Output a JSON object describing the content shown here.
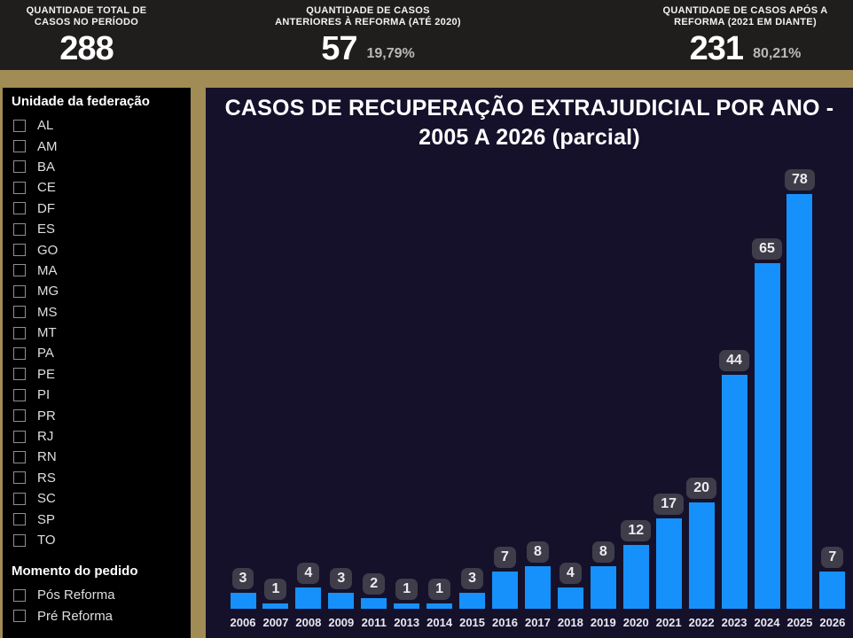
{
  "kpi_cards": [
    {
      "label_line1": "QUANTIDADE TOTAL DE",
      "label_line2": "CASOS NO PERÍODO",
      "value": "288",
      "percent": ""
    },
    {
      "label_line1": "QUANTIDADE DE CASOS",
      "label_line2": "ANTERIORES À REFORMA (ATÉ 2020)",
      "value": "57",
      "percent": "19,79%"
    },
    {
      "label_line1": "QUANTIDADE DE CASOS APÓS A",
      "label_line2": "REFORMA (2021 EM DIANTE)",
      "value": "231",
      "percent": "80,21%"
    }
  ],
  "sidebar": {
    "federation_title": "Unidade da federação",
    "states": [
      "AL",
      "AM",
      "BA",
      "CE",
      "DF",
      "ES",
      "GO",
      "MA",
      "MG",
      "MS",
      "MT",
      "PA",
      "PE",
      "PI",
      "PR",
      "RJ",
      "RN",
      "RS",
      "SC",
      "SP",
      "TO"
    ],
    "momento_title": "Momento do pedido",
    "momento_options": [
      "Pós Reforma",
      "Pré Reforma"
    ]
  },
  "chart_data": {
    "type": "bar",
    "title": "CASOS DE RECUPERAÇÃO EXTRAJUDICIAL POR ANO - 2005 A 2026 (parcial)",
    "title_lines": [
      "CASOS DE RECUPERAÇÃO EXTRAJUDICIAL POR ANO -",
      "2005 A 2026 (parcial)"
    ],
    "categories": [
      "2006",
      "2007",
      "2008",
      "2009",
      "2011",
      "2013",
      "2014",
      "2015",
      "2016",
      "2017",
      "2018",
      "2019",
      "2020",
      "2021",
      "2022",
      "2023",
      "2024",
      "2025",
      "2026"
    ],
    "values": [
      3,
      1,
      4,
      3,
      2,
      1,
      1,
      3,
      7,
      8,
      4,
      8,
      12,
      17,
      20,
      44,
      65,
      78,
      7
    ],
    "xlabel": "",
    "ylabel": "",
    "ylim": [
      0,
      80
    ],
    "grid": false,
    "legend": "none",
    "data_labels": true
  },
  "colors": {
    "page_background": "#A18C55",
    "header_background": "#201D1D",
    "sidebar_background": "#000000",
    "chart_background": "#15112B",
    "bar": "#1691FB",
    "data_label_pill": "#3E3D49",
    "text_primary": "#FFFFFF",
    "text_secondary": "#B9B9B9"
  }
}
